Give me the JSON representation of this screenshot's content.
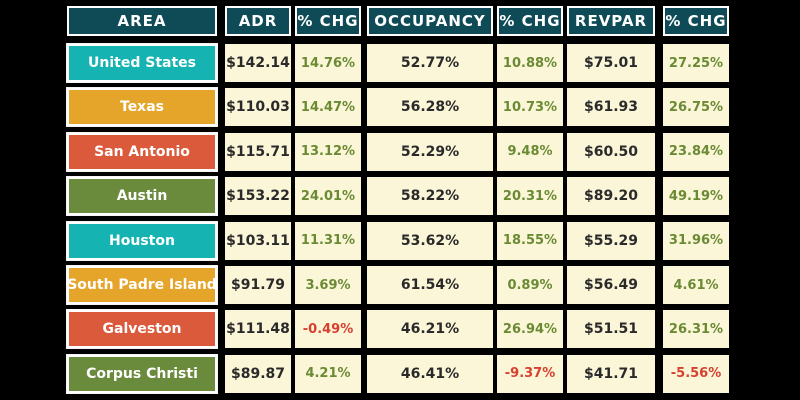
{
  "headers": [
    "AREA",
    "ADR",
    "% CHG",
    "OCCUPANCY",
    "% CHG",
    "REVPAR",
    "% CHG"
  ],
  "rows": [
    {
      "area": "United States",
      "adr": "$142.14",
      "adr_chg": "14.76%",
      "occ": "52.77%",
      "occ_chg": "10.88%",
      "revpar": "$75.01",
      "revpar_chg": "27.25%",
      "color": "#16b3b3"
    },
    {
      "area": "Texas",
      "adr": "$110.03",
      "adr_chg": "14.47%",
      "occ": "56.28%",
      "occ_chg": "10.73%",
      "revpar": "$61.93",
      "revpar_chg": "26.75%",
      "color": "#e5a52a"
    },
    {
      "area": "San Antonio",
      "adr": "$115.71",
      "adr_chg": "13.12%",
      "occ": "52.29%",
      "occ_chg": "9.48%",
      "revpar": "$60.50",
      "revpar_chg": "23.84%",
      "color": "#dc5a3c"
    },
    {
      "area": "Austin",
      "adr": "$153.22",
      "adr_chg": "24.01%",
      "occ": "58.22%",
      "occ_chg": "20.31%",
      "revpar": "$89.20",
      "revpar_chg": "49.19%",
      "color": "#6a8a3c"
    },
    {
      "area": "Houston",
      "adr": "$103.11",
      "adr_chg": "11.31%",
      "occ": "53.62%",
      "occ_chg": "18.55%",
      "revpar": "$55.29",
      "revpar_chg": "31.96%",
      "color": "#16b3b3"
    },
    {
      "area": "South Padre Island",
      "adr": "$91.79",
      "adr_chg": "3.69%",
      "occ": "61.54%",
      "occ_chg": "0.89%",
      "revpar": "$56.49",
      "revpar_chg": "4.61%",
      "color": "#e5a52a"
    },
    {
      "area": "Galveston",
      "adr": "$111.48",
      "adr_chg": "-0.49%",
      "occ": "46.21%",
      "occ_chg": "26.94%",
      "revpar": "$51.51",
      "revpar_chg": "26.31%",
      "color": "#dc5a3c"
    },
    {
      "area": "Corpus Christi",
      "adr": "$89.87",
      "adr_chg": "4.21%",
      "occ": "46.41%",
      "occ_chg": "-9.37%",
      "revpar": "$41.71",
      "revpar_chg": "-5.56%",
      "color": "#6a8a3c"
    }
  ]
}
